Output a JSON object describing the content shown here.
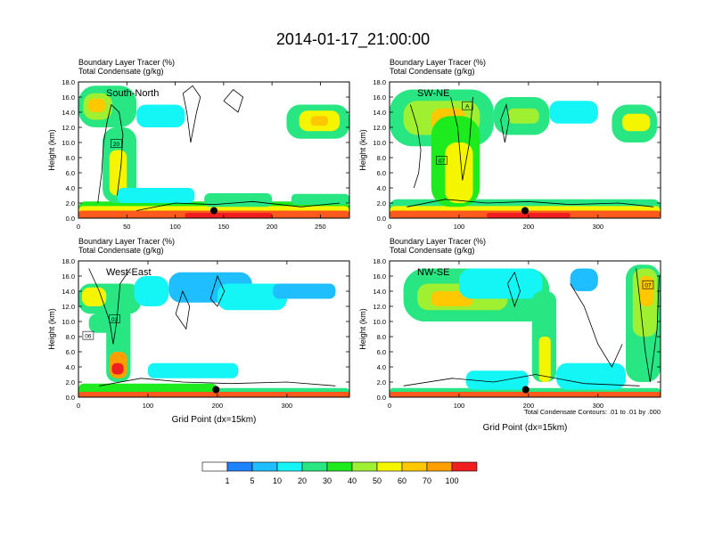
{
  "title": "2014-01-17_21:00:00",
  "colors": {
    "fill_levels": [
      "#ffffff",
      "#1e82ff",
      "#1ebeff",
      "#14f5f5",
      "#28e682",
      "#1eeb1e",
      "#a0f032",
      "#f5f500",
      "#ffc800",
      "#ffa000",
      "#ff5a1e",
      "#f01e1e"
    ],
    "contour_line": "#000000",
    "marker": "#000000"
  },
  "footnote": "Total Condensate Contours: .01 to .01 by .000",
  "chart_data": {
    "type": "heatmap",
    "fields": [
      "Boundary Layer Tracer (%)",
      "Total Condensate (g/kg)"
    ],
    "colorbar": {
      "labels": [
        "1",
        "5",
        "10",
        "20",
        "30",
        "40",
        "50",
        "60",
        "70",
        "100"
      ]
    },
    "panels": [
      {
        "label": "South-North",
        "subtitle_1": "Boundary Layer Tracer    (%)",
        "subtitle_2": "Total Condensate    (g/kg)",
        "ylabel": "Height (km)",
        "xlabel": "",
        "xlim": [
          0,
          280
        ],
        "ylim": [
          0,
          18
        ],
        "xticks": [
          "0",
          "50",
          "100",
          "150",
          "200",
          "250"
        ],
        "yticks": [
          "0.0",
          "2.0",
          "4.0",
          "6.0",
          "8.0",
          "10.0",
          "12.0",
          "14.0",
          "16.0",
          "18.0"
        ],
        "marker_point": [
          140,
          1.0
        ],
        "boxed_labels": [
          {
            "text": "20",
            "x": 39,
            "y": 9.8
          }
        ],
        "note": ""
      },
      {
        "label": "SW-NE",
        "subtitle_1": "Boundary Layer Tracer    (%)",
        "subtitle_2": "Total Condensate    (g/kg)",
        "ylabel": "Height (km)",
        "xlabel": "",
        "xlim": [
          0,
          390
        ],
        "ylim": [
          0,
          18
        ],
        "xticks": [
          "0",
          "100",
          "200",
          "300"
        ],
        "yticks": [
          "0.0",
          "2.0",
          "4.0",
          "6.0",
          "8.0",
          "10.0",
          "12.0",
          "14.0",
          "16.0",
          "18.0"
        ],
        "marker_point": [
          195,
          1.0
        ],
        "boxed_labels": [
          {
            "text": "07",
            "x": 75,
            "y": 7.6
          },
          {
            "text": "A",
            "x": 112,
            "y": 14.8
          }
        ],
        "note": ""
      },
      {
        "label": "West-East",
        "subtitle_1": "Boundary Layer Tracer    (%)",
        "subtitle_2": "Total Condensate    (g/kg)",
        "ylabel": "Height (km)",
        "xlabel": "Grid Point (dx=15km)",
        "xlim": [
          0,
          390
        ],
        "ylim": [
          0,
          18
        ],
        "xticks": [
          "0",
          "100",
          "200",
          "300"
        ],
        "yticks": [
          "0.0",
          "2.0",
          "4.0",
          "6.0",
          "8.0",
          "10.0",
          "12.0",
          "14.0",
          "16.0",
          "18.0"
        ],
        "marker_point": [
          198,
          1.0
        ],
        "boxed_labels": [
          {
            "text": "03",
            "x": 52,
            "y": 10.3
          },
          {
            "text": "06",
            "x": 14,
            "y": 8.1
          }
        ],
        "note": ""
      },
      {
        "label": "NW-SE",
        "subtitle_1": "Boundary Layer Tracer    (%)",
        "subtitle_2": "Total Condensate    (g/kg)",
        "ylabel": "Height (km)",
        "xlabel": "Grid Point (dx=15km)",
        "xlim": [
          0,
          390
        ],
        "ylim": [
          0,
          18
        ],
        "xticks": [
          "0",
          "100",
          "200",
          "300"
        ],
        "yticks": [
          "0.0",
          "2.0",
          "4.0",
          "6.0",
          "8.0",
          "10.0",
          "12.0",
          "14.0",
          "16.0",
          "18.0"
        ],
        "marker_point": [
          196,
          1.0
        ],
        "boxed_labels": [
          {
            "text": "07",
            "x": 372,
            "y": 14.8
          }
        ],
        "note": "Total Condensate Contours: .01 to .01 by .000"
      }
    ]
  }
}
